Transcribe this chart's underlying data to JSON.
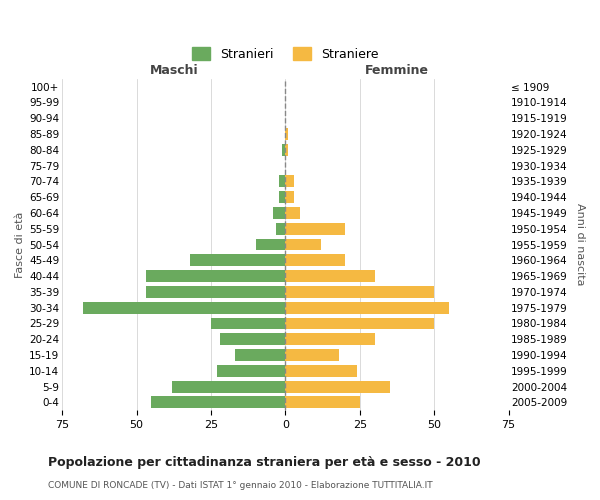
{
  "age_groups": [
    "100+",
    "95-99",
    "90-94",
    "85-89",
    "80-84",
    "75-79",
    "70-74",
    "65-69",
    "60-64",
    "55-59",
    "50-54",
    "45-49",
    "40-44",
    "35-39",
    "30-34",
    "25-29",
    "20-24",
    "15-19",
    "10-14",
    "5-9",
    "0-4"
  ],
  "birth_years": [
    "≤ 1909",
    "1910-1914",
    "1915-1919",
    "1920-1924",
    "1925-1929",
    "1930-1934",
    "1935-1939",
    "1940-1944",
    "1945-1949",
    "1950-1954",
    "1955-1959",
    "1960-1964",
    "1965-1969",
    "1970-1974",
    "1975-1979",
    "1980-1984",
    "1985-1989",
    "1990-1994",
    "1995-1999",
    "2000-2004",
    "2005-2009"
  ],
  "maschi": [
    0,
    0,
    0,
    0,
    1,
    0,
    2,
    2,
    4,
    3,
    10,
    32,
    47,
    47,
    68,
    25,
    22,
    17,
    23,
    38,
    45
  ],
  "femmine": [
    0,
    0,
    0,
    1,
    1,
    0,
    3,
    3,
    5,
    20,
    12,
    20,
    30,
    50,
    55,
    50,
    30,
    18,
    24,
    35,
    25
  ],
  "male_color": "#6aaa5e",
  "female_color": "#f5b942",
  "background_color": "#ffffff",
  "grid_color": "#cccccc",
  "center_line_color": "#888888",
  "title": "Popolazione per cittadinanza straniera per età e sesso - 2010",
  "subtitle": "COMUNE DI RONCADE (TV) - Dati ISTAT 1° gennaio 2010 - Elaborazione TUTTITALIA.IT",
  "xlabel_left": "Maschi",
  "xlabel_right": "Femmine",
  "ylabel_left": "Fasce di età",
  "ylabel_right": "Anni di nascita",
  "legend_male": "Stranieri",
  "legend_female": "Straniere",
  "xlim": 75
}
